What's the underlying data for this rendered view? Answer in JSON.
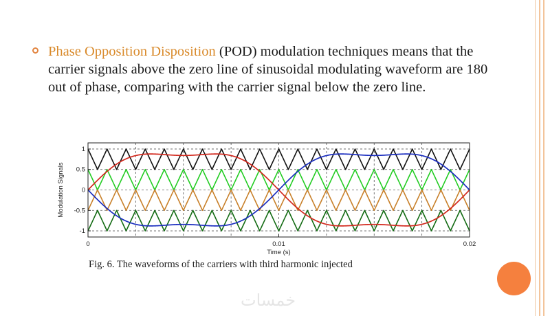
{
  "text": {
    "highlight": "Phase Opposition Disposition",
    "rest": " (POD) modulation techniques means that the carrier signals above the zero line of sinusoidal modulating waveform are 180 out of phase, comparing with the carrier signal below the zero line."
  },
  "caption": "Fig. 6. The waveforms of the carriers with third harmonic injected",
  "watermark": "خمسات",
  "colors": {
    "accent": "#d98a2b",
    "bullet": "#e2843f",
    "dot": "#f5803e"
  },
  "chart_data": {
    "type": "line",
    "xlabel": "Time (s)",
    "ylabel": "Modulation Signals",
    "xlim": [
      0,
      0.02
    ],
    "ylim": [
      -1.15,
      1.15
    ],
    "xticks": [
      0,
      0.01,
      0.02
    ],
    "yticks": [
      1,
      0.5,
      0,
      -0.5,
      -1
    ],
    "ytick_labels": [
      "1",
      "0.5",
      "0",
      "-0.5",
      "-1"
    ],
    "xtick_labels": [
      "0",
      "0.01",
      "0.02"
    ],
    "grid": true,
    "carrier_frequency_hz": 1000,
    "series": [
      {
        "role": "carrier",
        "band": [
          0.5,
          1.0
        ],
        "phase_inverted": false,
        "color": "#111111"
      },
      {
        "role": "carrier",
        "band": [
          0.0,
          0.5
        ],
        "phase_inverted": false,
        "color": "#22cc22"
      },
      {
        "role": "carrier",
        "band": [
          -0.5,
          0.0
        ],
        "phase_inverted": true,
        "color": "#c8802a"
      },
      {
        "role": "carrier",
        "band": [
          -1.0,
          -0.5
        ],
        "phase_inverted": true,
        "color": "#136b13"
      },
      {
        "role": "modulating",
        "phase_shift": "0",
        "harmonic3_ratio": 0.17,
        "color": "#d2281d"
      },
      {
        "role": "modulating",
        "phase_shift": "180deg",
        "harmonic3_ratio": 0.17,
        "color": "#1a2dbf"
      }
    ]
  }
}
